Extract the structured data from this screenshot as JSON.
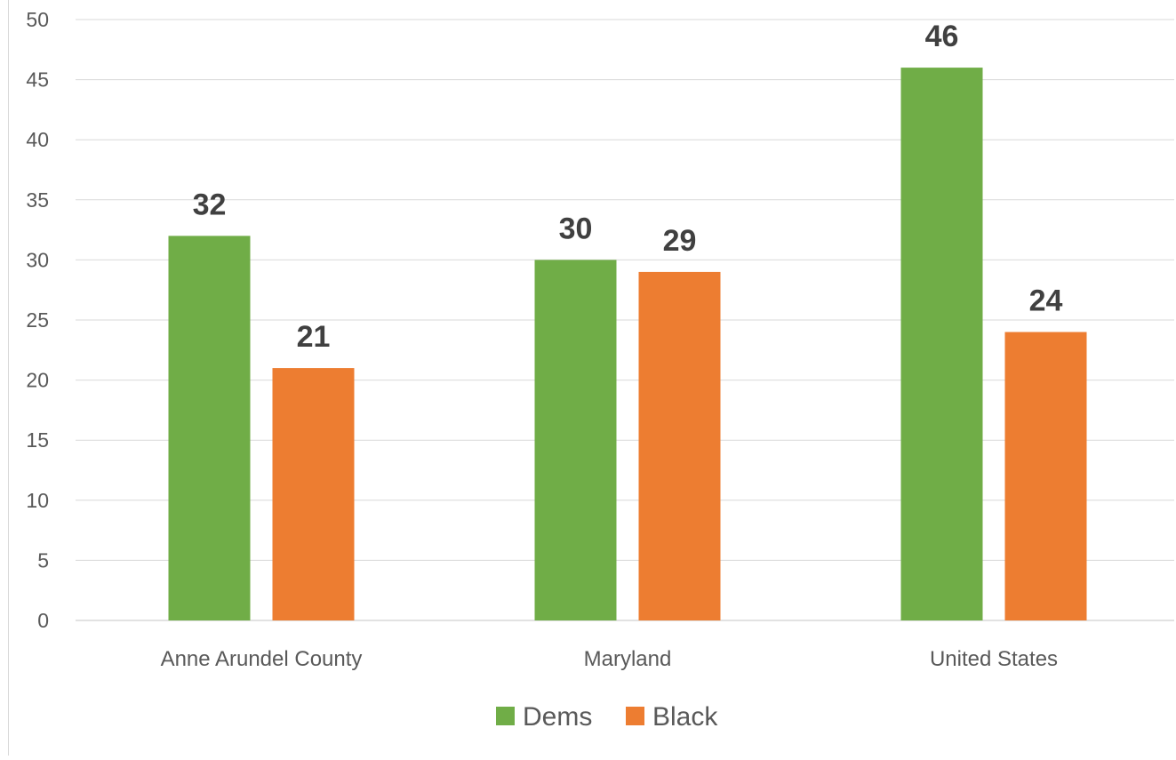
{
  "chart_data": {
    "type": "bar",
    "categories": [
      "Anne Arundel County",
      "Maryland",
      "United States"
    ],
    "series": [
      {
        "name": "Dems",
        "values": [
          32,
          30,
          46
        ],
        "color": "#70ad47"
      },
      {
        "name": "Black",
        "values": [
          21,
          29,
          24
        ],
        "color": "#ed7d31"
      }
    ],
    "ylim": [
      0,
      50
    ],
    "yticks": [
      0,
      5,
      10,
      15,
      20,
      25,
      30,
      35,
      40,
      45,
      50
    ],
    "grid": true,
    "data_labels": true,
    "legend": "bottom",
    "title": "",
    "xlabel": "",
    "ylabel": ""
  }
}
